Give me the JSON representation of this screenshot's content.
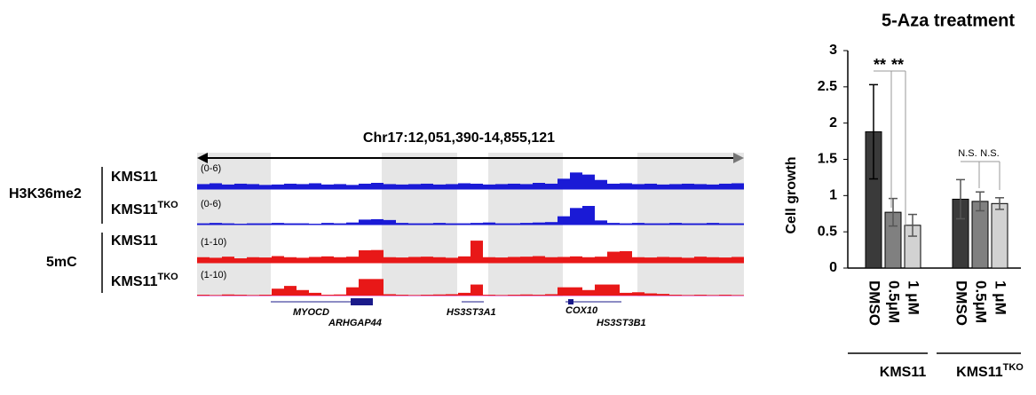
{
  "chart_data": [
    {
      "type": "track",
      "title": "Chr17:12,051,390-14,855,121",
      "groups": [
        {
          "label": "H3K36me2",
          "tracks": [
            {
              "name": "KMS11",
              "range_label": "(0-6)",
              "ylim": [
                0,
                6
              ],
              "color": "#1a1ad6",
              "values": [
                1.2,
                1.4,
                1.1,
                1.3,
                1.2,
                1.0,
                1.1,
                1.3,
                1.2,
                1.4,
                1.1,
                1.2,
                1.0,
                1.3,
                1.5,
                1.2,
                1.1,
                1.2,
                1.3,
                1.1,
                1.2,
                1.4,
                1.3,
                1.1,
                1.2,
                1.3,
                1.2,
                1.5,
                1.3,
                2.5,
                4.0,
                3.5,
                2.2,
                1.3,
                1.4,
                1.2,
                1.3,
                1.1,
                1.2,
                1.3,
                1.2,
                1.1,
                1.3,
                1.4
              ]
            },
            {
              "name": "KMS11",
              "superscript": "TKO",
              "range_label": "(0-6)",
              "ylim": [
                0,
                6
              ],
              "color": "#1a1ad6",
              "values": [
                0.3,
                0.4,
                0.3,
                0.2,
                0.3,
                0.3,
                0.4,
                0.3,
                0.3,
                0.2,
                0.4,
                0.3,
                0.5,
                1.2,
                1.3,
                1.1,
                0.4,
                0.3,
                0.3,
                0.4,
                0.3,
                0.3,
                0.4,
                0.5,
                0.3,
                0.3,
                0.4,
                0.5,
                0.6,
                2.0,
                4.0,
                4.5,
                1.0,
                0.4,
                0.3,
                0.4,
                0.3,
                0.3,
                0.4,
                0.3,
                0.3,
                0.4,
                0.3,
                0.3
              ]
            }
          ]
        },
        {
          "label": "5mC",
          "tracks": [
            {
              "name": "KMS11",
              "range_label": "(1-10)",
              "ylim": [
                1,
                10
              ],
              "color": "#e81818",
              "values": [
                3.0,
                2.8,
                3.2,
                2.6,
                3.0,
                2.9,
                3.4,
                3.0,
                2.8,
                3.1,
                3.3,
                3.0,
                3.2,
                5.5,
                5.6,
                3.0,
                2.9,
                3.1,
                3.2,
                3.0,
                2.8,
                3.3,
                9.0,
                3.0,
                2.9,
                3.1,
                3.2,
                3.4,
                3.0,
                3.1,
                3.3,
                3.0,
                3.2,
                5.0,
                5.2,
                3.0,
                2.9,
                3.1,
                3.0,
                2.8,
                3.2,
                3.0,
                2.9,
                3.1
              ]
            },
            {
              "name": "KMS11",
              "superscript": "TKO",
              "range_label": "(1-10)",
              "ylim": [
                1,
                10
              ],
              "color": "#e81818",
              "values": [
                1.3,
                1.2,
                1.4,
                1.3,
                1.2,
                1.3,
                3.5,
                4.5,
                3.0,
                2.0,
                1.3,
                1.4,
                4.0,
                7.0,
                7.0,
                1.5,
                1.3,
                1.2,
                1.3,
                1.4,
                1.5,
                2.0,
                5.0,
                1.3,
                1.2,
                1.3,
                1.4,
                1.3,
                1.5,
                4.0,
                4.0,
                3.0,
                5.0,
                5.0,
                2.0,
                2.2,
                1.8,
                1.6,
                1.3,
                1.2,
                1.3,
                1.2,
                1.3,
                1.2
              ]
            }
          ]
        }
      ],
      "genes": [
        "MYOCD",
        "ARHGAP44",
        "HS3ST3A1",
        "COX10",
        "HS3ST3B1"
      ]
    },
    {
      "type": "bar",
      "title": "5-Aza treatment",
      "y_label": "Cell growth",
      "categories": [
        "DMSO",
        "0.5μM",
        "1 μM"
      ],
      "colors": [
        "#3a3a3a",
        "#808080",
        "#d2d2d2"
      ],
      "groups": [
        {
          "name": "KMS11",
          "values": [
            1.88,
            0.77,
            0.59
          ],
          "errors": [
            0.65,
            0.19,
            0.15
          ]
        },
        {
          "name": "KMS11",
          "superscript": "TKO",
          "values": [
            0.95,
            0.92,
            0.89
          ],
          "errors": [
            0.27,
            0.13,
            0.08
          ]
        }
      ],
      "annotations": [
        "**",
        "**",
        "N.S.",
        "N.S."
      ],
      "ylim": [
        0,
        3
      ],
      "yticks": [
        0,
        0.5,
        1,
        1.5,
        2,
        2.5,
        3
      ]
    }
  ]
}
